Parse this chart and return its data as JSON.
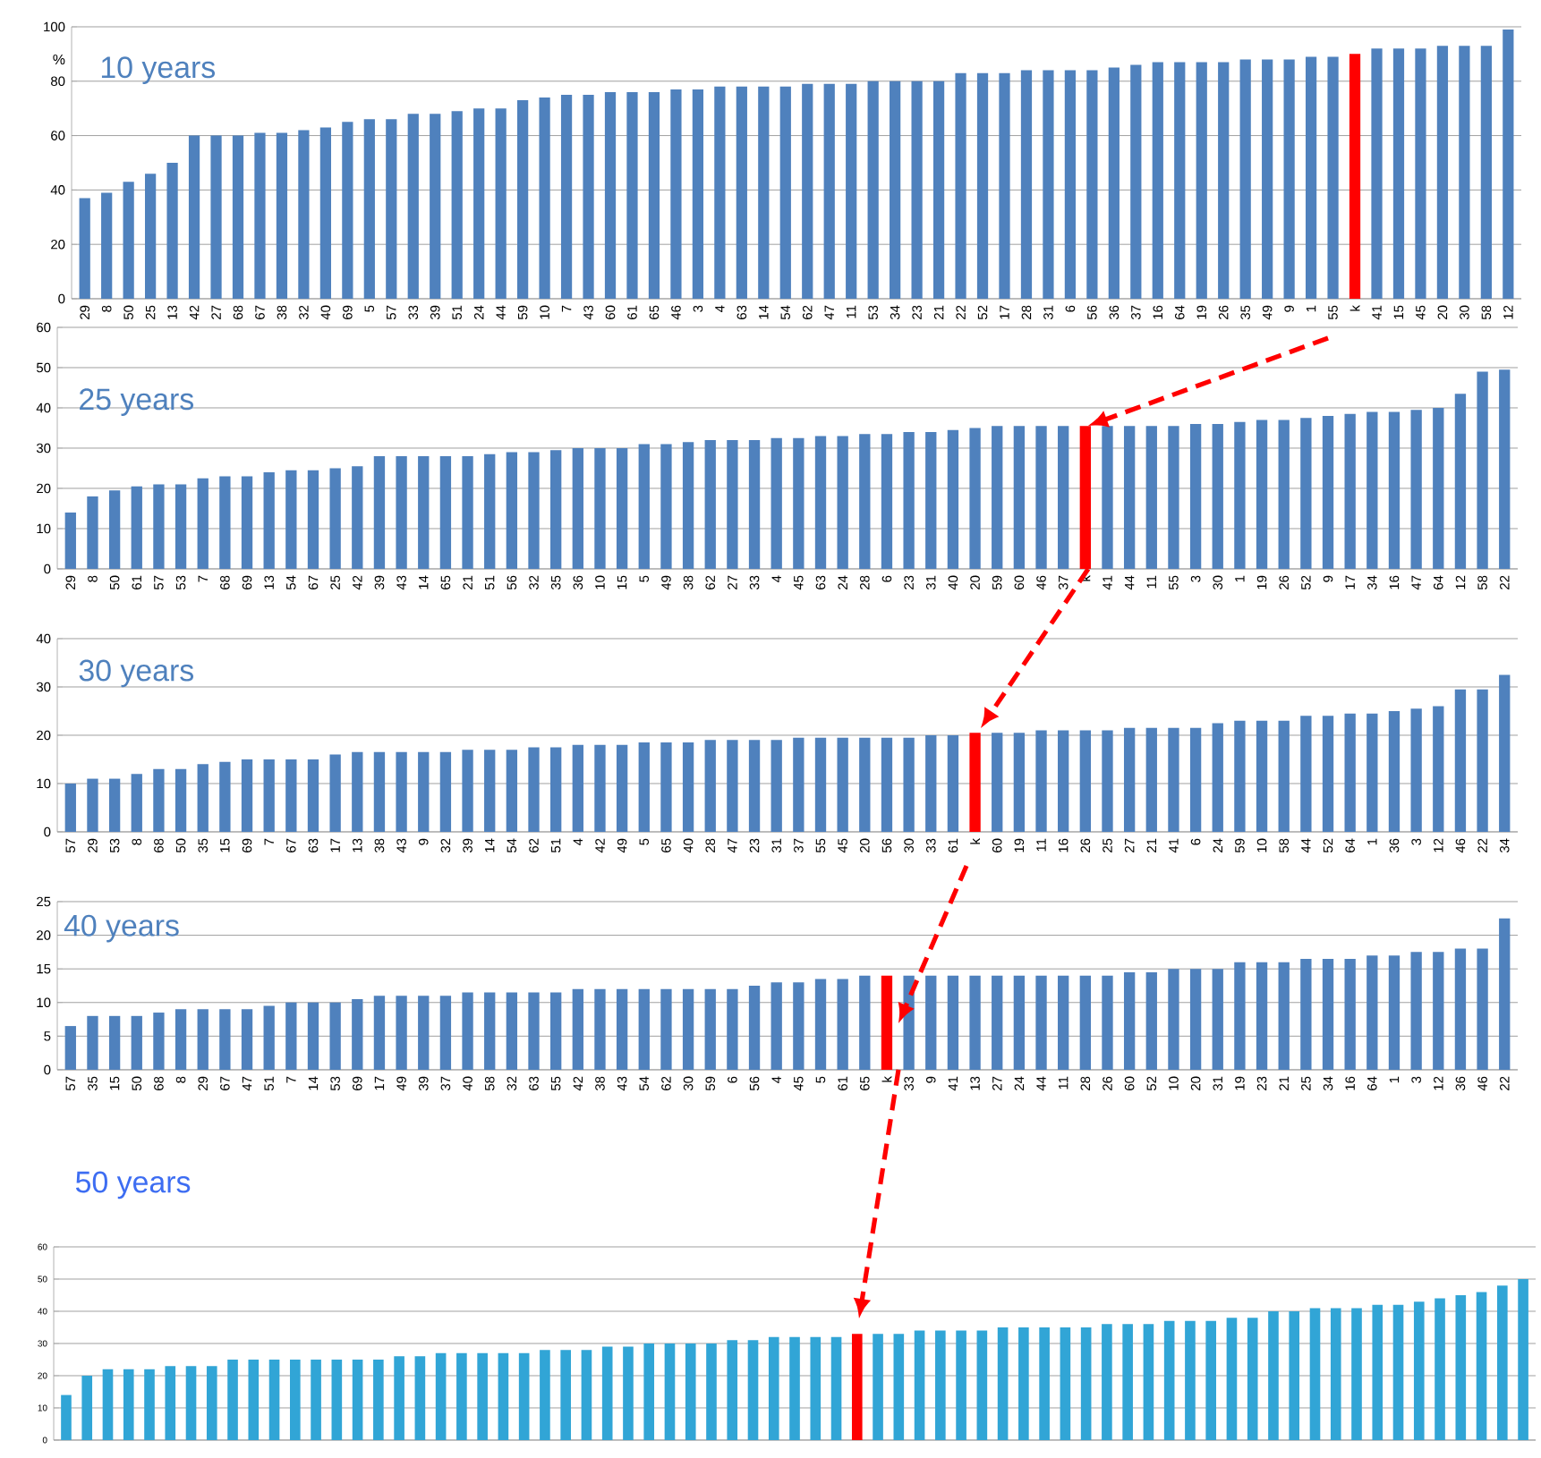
{
  "chart_data": [
    {
      "type": "bar",
      "title": "10 years",
      "ylabel": "%",
      "ylim": [
        0,
        100
      ],
      "yticks": [
        0,
        20,
        40,
        60,
        80,
        100
      ],
      "grid": "y",
      "categories": [
        "29",
        "8",
        "50",
        "25",
        "13",
        "42",
        "27",
        "68",
        "67",
        "38",
        "32",
        "40",
        "69",
        "5",
        "57",
        "33",
        "39",
        "51",
        "24",
        "44",
        "59",
        "10",
        "7",
        "43",
        "60",
        "61",
        "65",
        "46",
        "3",
        "4",
        "63",
        "14",
        "54",
        "62",
        "47",
        "11",
        "53",
        "34",
        "23",
        "21",
        "22",
        "52",
        "17",
        "28",
        "31",
        "6",
        "56",
        "36",
        "37",
        "16",
        "64",
        "19",
        "26",
        "35",
        "49",
        "9",
        "1",
        "55",
        "k",
        "41",
        "15",
        "45",
        "20",
        "30",
        "58",
        "12"
      ],
      "values": [
        37,
        39,
        43,
        46,
        50,
        60,
        60,
        60,
        61,
        61,
        62,
        63,
        65,
        66,
        66,
        68,
        68,
        69,
        70,
        70,
        73,
        74,
        75,
        75,
        76,
        76,
        76,
        77,
        77,
        78,
        78,
        78,
        78,
        79,
        79,
        79,
        80,
        80,
        80,
        80,
        83,
        83,
        83,
        84,
        84,
        84,
        84,
        85,
        86,
        87,
        87,
        87,
        87,
        88,
        88,
        88,
        89,
        89,
        90,
        92,
        92,
        92,
        93,
        93,
        93,
        99
      ],
      "colors": [
        "#4f81bd",
        "#4f81bd",
        "#4f81bd",
        "#4f81bd",
        "#4f81bd",
        "#4f81bd",
        "#4f81bd",
        "#4f81bd",
        "#4f81bd",
        "#4f81bd",
        "#4f81bd",
        "#4f81bd",
        "#4f81bd",
        "#4f81bd",
        "#4f81bd",
        "#4f81bd",
        "#4f81bd",
        "#4f81bd",
        "#4f81bd",
        "#4f81bd",
        "#4f81bd",
        "#4f81bd",
        "#4f81bd",
        "#4f81bd",
        "#4f81bd",
        "#4f81bd",
        "#4f81bd",
        "#4f81bd",
        "#4f81bd",
        "#4f81bd",
        "#4f81bd",
        "#4f81bd",
        "#4f81bd",
        "#4f81bd",
        "#4f81bd",
        "#4f81bd",
        "#4f81bd",
        "#4f81bd",
        "#4f81bd",
        "#4f81bd",
        "#4f81bd",
        "#4f81bd",
        "#4f81bd",
        "#4f81bd",
        "#4f81bd",
        "#4f81bd",
        "#4f81bd",
        "#4f81bd",
        "#4f81bd",
        "#4f81bd",
        "#4f81bd",
        "#4f81bd",
        "#4f81bd",
        "#4f81bd",
        "#4f81bd",
        "#4f81bd",
        "#4f81bd",
        "#4f81bd",
        "#ff0000",
        "#4f81bd",
        "#4f81bd",
        "#4f81bd",
        "#4f81bd",
        "#4f81bd",
        "#4f81bd",
        "#4f81bd"
      ]
    },
    {
      "type": "bar",
      "title": "25 years",
      "ylim": [
        0,
        60
      ],
      "yticks": [
        0,
        10,
        20,
        30,
        40,
        50,
        60
      ],
      "grid": "y",
      "categories": [
        "29",
        "8",
        "50",
        "61",
        "57",
        "53",
        "7",
        "68",
        "69",
        "13",
        "54",
        "67",
        "25",
        "42",
        "39",
        "43",
        "14",
        "65",
        "21",
        "51",
        "56",
        "32",
        "35",
        "36",
        "10",
        "15",
        "5",
        "49",
        "38",
        "62",
        "27",
        "33",
        "4",
        "45",
        "63",
        "24",
        "28",
        "6",
        "23",
        "31",
        "40",
        "20",
        "59",
        "60",
        "46",
        "37",
        "k",
        "41",
        "44",
        "11",
        "55",
        "3",
        "30",
        "1",
        "19",
        "26",
        "52",
        "9",
        "17",
        "34",
        "16",
        "47",
        "64",
        "12",
        "58",
        "22"
      ],
      "values": [
        14,
        18,
        19.5,
        20.5,
        21,
        21,
        22.5,
        23,
        23,
        24,
        24.5,
        24.5,
        25,
        25.5,
        28,
        28,
        28,
        28,
        28,
        28.5,
        29,
        29,
        29.5,
        30,
        30,
        30,
        31,
        31,
        31.5,
        32,
        32,
        32,
        32.5,
        32.5,
        33,
        33,
        33.5,
        33.5,
        34,
        34,
        34.5,
        35,
        35.5,
        35.5,
        35.5,
        35.5,
        35.5,
        35.5,
        35.5,
        35.5,
        35.5,
        36,
        36,
        36.5,
        37,
        37,
        37.5,
        38,
        38.5,
        39,
        39,
        39.5,
        40,
        43.5,
        49,
        49.5
      ],
      "colors": [
        "#4f81bd",
        "#4f81bd",
        "#4f81bd",
        "#4f81bd",
        "#4f81bd",
        "#4f81bd",
        "#4f81bd",
        "#4f81bd",
        "#4f81bd",
        "#4f81bd",
        "#4f81bd",
        "#4f81bd",
        "#4f81bd",
        "#4f81bd",
        "#4f81bd",
        "#4f81bd",
        "#4f81bd",
        "#4f81bd",
        "#4f81bd",
        "#4f81bd",
        "#4f81bd",
        "#4f81bd",
        "#4f81bd",
        "#4f81bd",
        "#4f81bd",
        "#4f81bd",
        "#4f81bd",
        "#4f81bd",
        "#4f81bd",
        "#4f81bd",
        "#4f81bd",
        "#4f81bd",
        "#4f81bd",
        "#4f81bd",
        "#4f81bd",
        "#4f81bd",
        "#4f81bd",
        "#4f81bd",
        "#4f81bd",
        "#4f81bd",
        "#4f81bd",
        "#4f81bd",
        "#4f81bd",
        "#4f81bd",
        "#4f81bd",
        "#4f81bd",
        "#ff0000",
        "#4f81bd",
        "#4f81bd",
        "#4f81bd",
        "#4f81bd",
        "#4f81bd",
        "#4f81bd",
        "#4f81bd",
        "#4f81bd",
        "#4f81bd",
        "#4f81bd",
        "#4f81bd",
        "#4f81bd",
        "#4f81bd",
        "#4f81bd",
        "#4f81bd",
        "#4f81bd",
        "#4f81bd",
        "#4f81bd",
        "#4f81bd"
      ]
    },
    {
      "type": "bar",
      "title": "30 years",
      "ylim": [
        0,
        40
      ],
      "yticks": [
        0,
        10,
        20,
        30,
        40
      ],
      "grid": "y",
      "categories": [
        "57",
        "29",
        "53",
        "8",
        "68",
        "50",
        "35",
        "15",
        "69",
        "7",
        "67",
        "63",
        "17",
        "13",
        "38",
        "43",
        "9",
        "32",
        "39",
        "14",
        "54",
        "62",
        "51",
        "4",
        "42",
        "49",
        "5",
        "65",
        "40",
        "28",
        "47",
        "23",
        "31",
        "37",
        "55",
        "45",
        "20",
        "56",
        "30",
        "33",
        "61",
        "k",
        "60",
        "19",
        "11",
        "16",
        "26",
        "25",
        "27",
        "21",
        "41",
        "6",
        "24",
        "59",
        "10",
        "58",
        "44",
        "52",
        "64",
        "1",
        "36",
        "3",
        "12",
        "46",
        "22",
        "34"
      ],
      "values": [
        10,
        11,
        11,
        12,
        13,
        13,
        14,
        14.5,
        15,
        15,
        15,
        15,
        16,
        16.5,
        16.5,
        16.5,
        16.5,
        16.5,
        17,
        17,
        17,
        17.5,
        17.5,
        18,
        18,
        18,
        18.5,
        18.5,
        18.5,
        19,
        19,
        19,
        19,
        19.5,
        19.5,
        19.5,
        19.5,
        19.5,
        19.5,
        20,
        20,
        20.5,
        20.5,
        20.5,
        21,
        21,
        21,
        21,
        21.5,
        21.5,
        21.5,
        21.5,
        22.5,
        23,
        23,
        23,
        24,
        24,
        24.5,
        24.5,
        25,
        25.5,
        26,
        29.5,
        29.5,
        32.5
      ],
      "colors": [
        "#4f81bd",
        "#4f81bd",
        "#4f81bd",
        "#4f81bd",
        "#4f81bd",
        "#4f81bd",
        "#4f81bd",
        "#4f81bd",
        "#4f81bd",
        "#4f81bd",
        "#4f81bd",
        "#4f81bd",
        "#4f81bd",
        "#4f81bd",
        "#4f81bd",
        "#4f81bd",
        "#4f81bd",
        "#4f81bd",
        "#4f81bd",
        "#4f81bd",
        "#4f81bd",
        "#4f81bd",
        "#4f81bd",
        "#4f81bd",
        "#4f81bd",
        "#4f81bd",
        "#4f81bd",
        "#4f81bd",
        "#4f81bd",
        "#4f81bd",
        "#4f81bd",
        "#4f81bd",
        "#4f81bd",
        "#4f81bd",
        "#4f81bd",
        "#4f81bd",
        "#4f81bd",
        "#4f81bd",
        "#4f81bd",
        "#4f81bd",
        "#4f81bd",
        "#ff0000",
        "#4f81bd",
        "#4f81bd",
        "#4f81bd",
        "#4f81bd",
        "#4f81bd",
        "#4f81bd",
        "#4f81bd",
        "#4f81bd",
        "#4f81bd",
        "#4f81bd",
        "#4f81bd",
        "#4f81bd",
        "#4f81bd",
        "#4f81bd",
        "#4f81bd",
        "#4f81bd",
        "#4f81bd",
        "#4f81bd",
        "#4f81bd",
        "#4f81bd",
        "#4f81bd",
        "#4f81bd",
        "#4f81bd",
        "#4f81bd"
      ]
    },
    {
      "type": "bar",
      "title": "40 years",
      "ylim": [
        0,
        25
      ],
      "yticks": [
        0,
        5,
        10,
        15,
        20,
        25
      ],
      "grid": "y",
      "categories": [
        "57",
        "35",
        "15",
        "50",
        "68",
        "8",
        "29",
        "67",
        "47",
        "51",
        "7",
        "14",
        "53",
        "69",
        "17",
        "49",
        "39",
        "37",
        "40",
        "58",
        "32",
        "63",
        "55",
        "42",
        "38",
        "43",
        "54",
        "62",
        "30",
        "59",
        "6",
        "56",
        "4",
        "45",
        "5",
        "61",
        "65",
        "k",
        "33",
        "9",
        "41",
        "13",
        "27",
        "24",
        "44",
        "11",
        "28",
        "26",
        "60",
        "52",
        "10",
        "20",
        "31",
        "19",
        "23",
        "21",
        "25",
        "34",
        "16",
        "64",
        "1",
        "3",
        "12",
        "36",
        "46",
        "22"
      ],
      "values": [
        6.5,
        8,
        8,
        8,
        8.5,
        9,
        9,
        9,
        9,
        9.5,
        10,
        10,
        10,
        10.5,
        11,
        11,
        11,
        11,
        11.5,
        11.5,
        11.5,
        11.5,
        11.5,
        12,
        12,
        12,
        12,
        12,
        12,
        12,
        12,
        12.5,
        13,
        13,
        13.5,
        13.5,
        14,
        14,
        14,
        14,
        14,
        14,
        14,
        14,
        14,
        14,
        14,
        14,
        14.5,
        14.5,
        15,
        15,
        15,
        16,
        16,
        16,
        16.5,
        16.5,
        16.5,
        17,
        17,
        17.5,
        17.5,
        18,
        18,
        22.5
      ],
      "colors": [
        "#4f81bd",
        "#4f81bd",
        "#4f81bd",
        "#4f81bd",
        "#4f81bd",
        "#4f81bd",
        "#4f81bd",
        "#4f81bd",
        "#4f81bd",
        "#4f81bd",
        "#4f81bd",
        "#4f81bd",
        "#4f81bd",
        "#4f81bd",
        "#4f81bd",
        "#4f81bd",
        "#4f81bd",
        "#4f81bd",
        "#4f81bd",
        "#4f81bd",
        "#4f81bd",
        "#4f81bd",
        "#4f81bd",
        "#4f81bd",
        "#4f81bd",
        "#4f81bd",
        "#4f81bd",
        "#4f81bd",
        "#4f81bd",
        "#4f81bd",
        "#4f81bd",
        "#4f81bd",
        "#4f81bd",
        "#4f81bd",
        "#4f81bd",
        "#4f81bd",
        "#4f81bd",
        "#ff0000",
        "#4f81bd",
        "#4f81bd",
        "#4f81bd",
        "#4f81bd",
        "#4f81bd",
        "#4f81bd",
        "#4f81bd",
        "#4f81bd",
        "#4f81bd",
        "#4f81bd",
        "#4f81bd",
        "#4f81bd",
        "#4f81bd",
        "#4f81bd",
        "#4f81bd",
        "#4f81bd",
        "#4f81bd",
        "#4f81bd",
        "#4f81bd",
        "#4f81bd",
        "#4f81bd",
        "#4f81bd",
        "#4f81bd",
        "#4f81bd",
        "#4f81bd",
        "#4f81bd",
        "#4f81bd",
        "#4f81bd"
      ]
    },
    {
      "type": "bar",
      "title": "50 years",
      "ylim": [
        0,
        60
      ],
      "yticks": [
        0,
        10,
        20,
        30,
        40,
        50,
        60
      ],
      "grid": "y",
      "categories": [
        null,
        null,
        null,
        null,
        null,
        null,
        null,
        null,
        null,
        null,
        null,
        null,
        null,
        null,
        null,
        null,
        null,
        null,
        null,
        null,
        null,
        null,
        null,
        null,
        null,
        null,
        null,
        null,
        null,
        null,
        null,
        null,
        null,
        null,
        null,
        null,
        null,
        null,
        null,
        null,
        null,
        null,
        null,
        null,
        null,
        null,
        null,
        null,
        null,
        null,
        null,
        null,
        null,
        null,
        null,
        null,
        null,
        null,
        null,
        null,
        null,
        null,
        null,
        null,
        null,
        null,
        null,
        null,
        null,
        null,
        null
      ],
      "values": [
        14,
        20,
        22,
        22,
        22,
        23,
        23,
        23,
        25,
        25,
        25,
        25,
        25,
        25,
        25,
        25,
        26,
        26,
        27,
        27,
        27,
        27,
        27,
        28,
        28,
        28,
        29,
        29,
        30,
        30,
        30,
        30,
        31,
        31,
        32,
        32,
        32,
        32,
        33,
        33,
        33,
        34,
        34,
        34,
        34,
        35,
        35,
        35,
        35,
        35,
        36,
        36,
        36,
        37,
        37,
        37,
        38,
        38,
        40,
        40,
        41,
        41,
        41,
        42,
        42,
        43,
        44,
        45,
        46,
        48,
        50
      ],
      "colors": [
        "#31a5d6",
        "#31a5d6",
        "#31a5d6",
        "#31a5d6",
        "#31a5d6",
        "#31a5d6",
        "#31a5d6",
        "#31a5d6",
        "#31a5d6",
        "#31a5d6",
        "#31a5d6",
        "#31a5d6",
        "#31a5d6",
        "#31a5d6",
        "#31a5d6",
        "#31a5d6",
        "#31a5d6",
        "#31a5d6",
        "#31a5d6",
        "#31a5d6",
        "#31a5d6",
        "#31a5d6",
        "#31a5d6",
        "#31a5d6",
        "#31a5d6",
        "#31a5d6",
        "#31a5d6",
        "#31a5d6",
        "#31a5d6",
        "#31a5d6",
        "#31a5d6",
        "#31a5d6",
        "#31a5d6",
        "#31a5d6",
        "#31a5d6",
        "#31a5d6",
        "#31a5d6",
        "#31a5d6",
        "#ff0000",
        "#31a5d6",
        "#31a5d6",
        "#31a5d6",
        "#31a5d6",
        "#31a5d6",
        "#31a5d6",
        "#31a5d6",
        "#31a5d6",
        "#31a5d6",
        "#31a5d6",
        "#31a5d6",
        "#31a5d6",
        "#31a5d6",
        "#31a5d6",
        "#31a5d6",
        "#31a5d6",
        "#31a5d6",
        "#31a5d6",
        "#31a5d6",
        "#31a5d6",
        "#31a5d6",
        "#31a5d6",
        "#31a5d6",
        "#31a5d6",
        "#31a5d6",
        "#31a5d6",
        "#31a5d6",
        "#31a5d6",
        "#31a5d6",
        "#31a5d6",
        "#31a5d6",
        "#31a5d6"
      ]
    }
  ]
}
